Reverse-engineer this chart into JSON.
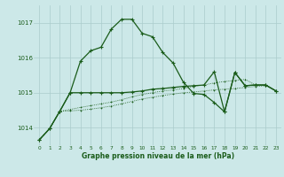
{
  "background_color": "#cce8e8",
  "grid_color": "#aacccc",
  "line_color": "#1a5c1a",
  "x_ticks": [
    0,
    1,
    2,
    3,
    4,
    5,
    6,
    7,
    8,
    9,
    10,
    11,
    12,
    13,
    14,
    15,
    16,
    17,
    18,
    19,
    20,
    21,
    22,
    23
  ],
  "ylim": [
    1013.5,
    1017.5
  ],
  "yticks": [
    1014,
    1015,
    1016,
    1017
  ],
  "xlabel": "Graphe pression niveau de la mer (hPa)",
  "series1": [
    1013.65,
    1013.97,
    1014.47,
    1015.0,
    1015.9,
    1016.2,
    1016.3,
    1016.82,
    1017.1,
    1017.1,
    1016.7,
    1016.6,
    1016.15,
    1015.85,
    1015.3,
    1014.98,
    1014.95,
    1014.72,
    1014.45,
    1015.58,
    1015.2,
    1015.22,
    1015.22,
    1015.05
  ],
  "series2": [
    1013.65,
    1013.97,
    1014.47,
    1015.0,
    1015.0,
    1015.0,
    1015.0,
    1015.0,
    1015.0,
    1015.02,
    1015.05,
    1015.1,
    1015.12,
    1015.15,
    1015.18,
    1015.2,
    1015.22,
    1015.6,
    1014.45,
    1015.58,
    1015.2,
    1015.22,
    1015.22,
    1015.05
  ],
  "series3": [
    1013.65,
    1013.97,
    1014.47,
    1014.52,
    1014.58,
    1014.63,
    1014.68,
    1014.73,
    1014.8,
    1014.88,
    1014.95,
    1015.0,
    1015.05,
    1015.08,
    1015.12,
    1015.18,
    1015.22,
    1015.28,
    1015.32,
    1015.35,
    1015.38,
    1015.22,
    1015.22,
    1015.05
  ],
  "series4": [
    1013.65,
    1013.97,
    1014.47,
    1014.48,
    1014.5,
    1014.53,
    1014.57,
    1014.62,
    1014.68,
    1014.75,
    1014.82,
    1014.87,
    1014.92,
    1014.96,
    1015.0,
    1015.02,
    1015.05,
    1015.08,
    1015.1,
    1015.12,
    1015.15,
    1015.18,
    1015.2,
    1015.05
  ],
  "figsize": [
    3.2,
    2.0
  ],
  "dpi": 100
}
